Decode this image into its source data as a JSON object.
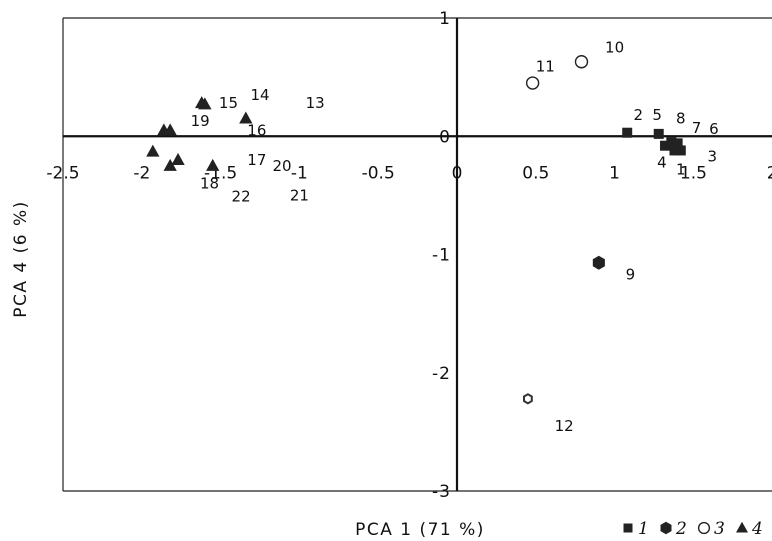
{
  "chart_data": {
    "type": "scatter",
    "xlabel": "PCA 1 (71 %)",
    "ylabel": "PCA 4 (6 %)",
    "xlim": [
      -2.5,
      2
    ],
    "ylim": [
      -3,
      1
    ],
    "x_ticks": [
      "-2.5",
      "-2",
      "-1.5",
      "-1",
      "-0.5",
      "0",
      "0.5",
      "1",
      "1.5",
      "2"
    ],
    "y_ticks": [
      "1",
      "0",
      "-1",
      "-2",
      "-3"
    ],
    "grid": false,
    "legend": {
      "placement": "bottom-right",
      "entries": [
        {
          "marker": "square",
          "label": "1"
        },
        {
          "marker": "hexagon",
          "label": "2"
        },
        {
          "marker": "circle",
          "label": "3"
        },
        {
          "marker": "triangle",
          "label": "4"
        }
      ]
    },
    "series": [
      {
        "marker": "square",
        "points": [
          {
            "x": 1.08,
            "y": 0.03
          },
          {
            "x": 1.28,
            "y": 0.02
          },
          {
            "x": 1.32,
            "y": -0.08
          },
          {
            "x": 1.36,
            "y": -0.05
          },
          {
            "x": 1.38,
            "y": -0.12
          },
          {
            "x": 1.4,
            "y": -0.06
          },
          {
            "x": 1.42,
            "y": -0.12
          }
        ]
      },
      {
        "marker": "hexagon",
        "points": [
          {
            "x": 0.9,
            "y": -1.07
          }
        ]
      },
      {
        "marker": "circle",
        "points": [
          {
            "x": 0.48,
            "y": 0.45
          },
          {
            "x": 0.79,
            "y": 0.63
          }
        ]
      },
      {
        "marker": "triangle",
        "points": [
          {
            "x": -1.62,
            "y": 0.28
          },
          {
            "x": -1.6,
            "y": 0.27
          },
          {
            "x": -1.34,
            "y": 0.15
          },
          {
            "x": -1.86,
            "y": 0.05
          },
          {
            "x": -1.82,
            "y": 0.05
          },
          {
            "x": -1.93,
            "y": -0.13
          },
          {
            "x": -1.77,
            "y": -0.2
          },
          {
            "x": -1.82,
            "y": -0.25
          },
          {
            "x": -1.55,
            "y": -0.25
          }
        ]
      },
      {
        "marker": "hexagon-outline",
        "points": [
          {
            "x": 0.45,
            "y": -2.22
          }
        ]
      }
    ],
    "point_labels": [
      {
        "text": "2",
        "x": 1.15,
        "y": 0.18
      },
      {
        "text": "5",
        "x": 1.27,
        "y": 0.18
      },
      {
        "text": "8",
        "x": 1.42,
        "y": 0.15
      },
      {
        "text": "7",
        "x": 1.52,
        "y": 0.07
      },
      {
        "text": "6",
        "x": 1.63,
        "y": 0.06
      },
      {
        "text": "4",
        "x": 1.3,
        "y": -0.22
      },
      {
        "text": "1",
        "x": 1.42,
        "y": -0.28
      },
      {
        "text": "3",
        "x": 1.62,
        "y": -0.17
      },
      {
        "text": "9",
        "x": 1.1,
        "y": -1.17
      },
      {
        "text": "10",
        "x": 1.0,
        "y": 0.75
      },
      {
        "text": "11",
        "x": 0.56,
        "y": 0.59
      },
      {
        "text": "12",
        "x": 0.68,
        "y": -2.45
      },
      {
        "text": "13",
        "x": -0.9,
        "y": 0.28
      },
      {
        "text": "14",
        "x": -1.25,
        "y": 0.35
      },
      {
        "text": "15",
        "x": -1.45,
        "y": 0.28
      },
      {
        "text": "16",
        "x": -1.27,
        "y": 0.05
      },
      {
        "text": "17",
        "x": -1.27,
        "y": -0.2
      },
      {
        "text": "18",
        "x": -1.57,
        "y": -0.4
      },
      {
        "text": "19",
        "x": -1.63,
        "y": 0.13
      },
      {
        "text": "20",
        "x": -1.11,
        "y": -0.25
      },
      {
        "text": "21",
        "x": -1.0,
        "y": -0.5
      },
      {
        "text": "22",
        "x": -1.37,
        "y": -0.51
      }
    ]
  }
}
